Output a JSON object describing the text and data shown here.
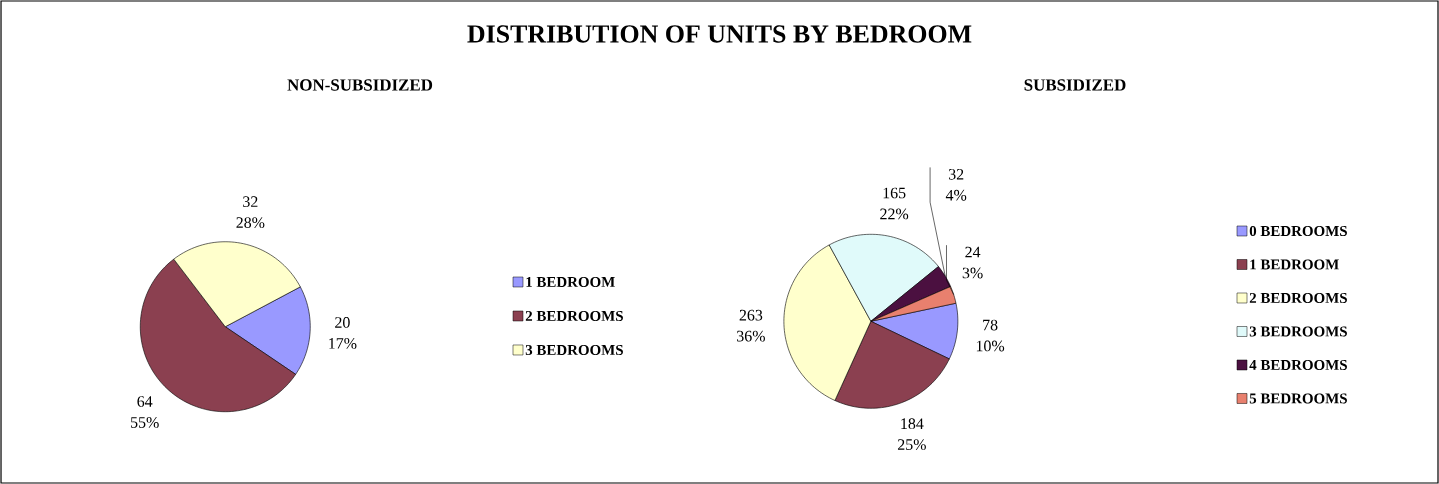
{
  "chart_data": [
    {
      "type": "pie",
      "title": "DISTRIBUTION OF UNITS BY BEDROOM",
      "subtitle": "NON-SUBSIDIZED",
      "categories": [
        "1 BEDROOM",
        "2 BEDROOMS",
        "3 BEDROOMS"
      ],
      "values": [
        20,
        64,
        32
      ],
      "value_labels": [
        "20 17%",
        "64 55%",
        "32 28%"
      ],
      "colors": [
        "#9999ff",
        "#8b4050",
        "#ffffcc"
      ],
      "legend": "right"
    },
    {
      "type": "pie",
      "subtitle": "SUBSIDIZED",
      "categories": [
        "0 BEDROOMS",
        "1 BEDROOM",
        "2 BEDROOMS",
        "3 BEDROOMS",
        "4 BEDROOMS",
        "5 BEDROOMS"
      ],
      "values": [
        78,
        184,
        263,
        165,
        32,
        24
      ],
      "value_labels": [
        "78 10%",
        "184 25%",
        "263 36%",
        "165 22%",
        "32 4%",
        "24 3%"
      ],
      "colors": [
        "#9999ff",
        "#8b4050",
        "#ffffcc",
        "#e0fafa",
        "#4b1040",
        "#e8806e"
      ],
      "legend": "right"
    }
  ]
}
